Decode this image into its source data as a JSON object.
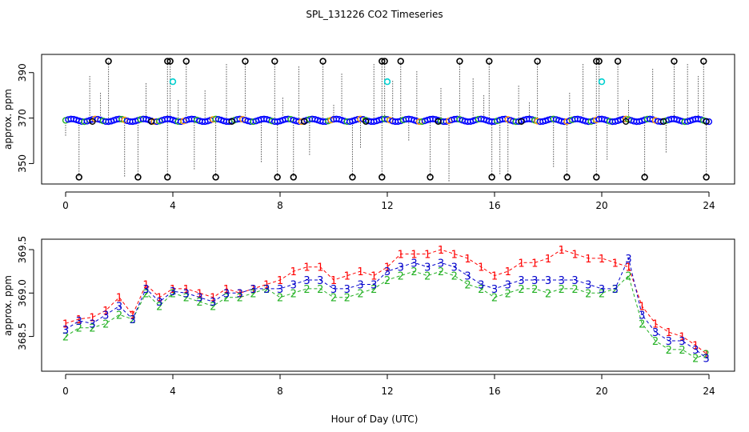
{
  "figure": {
    "title": "SPL_131226  CO2 Timeseries",
    "shared_xlabel": "Hour of Day (UTC)"
  },
  "colors": {
    "black": "#000000",
    "blue": "#0000ff",
    "cyan": "#00d0d0",
    "orange": "#ff9900",
    "red": "#ff0000",
    "green": "#22b022",
    "darkblue": "#0000cc"
  },
  "chart_data": [
    {
      "type": "scatter",
      "title": "SPL_131226  CO2 Timeseries",
      "xlabel": "",
      "ylabel": "approx. ppm",
      "xlim": [
        -0.5,
        24.5
      ],
      "ylim": [
        341,
        398
      ],
      "xticks": [
        0,
        4,
        8,
        12,
        16,
        20,
        24
      ],
      "xtick_labels": [
        "0",
        "4",
        "8",
        "12",
        "16",
        "20",
        "24"
      ],
      "yticks": [
        350,
        370,
        390
      ],
      "ytick_labels": [
        "350",
        "370",
        "390"
      ],
      "baseline": 369,
      "high_spikes_x": [
        1.6,
        3.8,
        3.9,
        4.5,
        6.7,
        7.8,
        9.6,
        11.8,
        11.9,
        12.5,
        14.7,
        15.8,
        17.6,
        19.8,
        19.9,
        20.6,
        22.7,
        23.8
      ],
      "high_value": 395,
      "low_spikes_x": [
        0.5,
        2.7,
        3.8,
        5.6,
        7.9,
        8.5,
        10.7,
        11.8,
        13.6,
        15.9,
        16.5,
        18.7,
        19.8,
        21.6,
        23.9
      ],
      "low_value": 344,
      "cyan_points": [
        [
          4.0,
          386
        ],
        [
          12.0,
          386
        ],
        [
          20.0,
          386
        ]
      ],
      "vertical_line_x": [
        0,
        0.9,
        1.3,
        2.2,
        3.0,
        4.2,
        4.8,
        5.2,
        6.0,
        7.3,
        8.1,
        8.7,
        9.1,
        10.0,
        10.3,
        11.0,
        11.5,
        12.2,
        12.8,
        13.1,
        14.0,
        14.3,
        15.2,
        15.6,
        16.2,
        16.9,
        17.3,
        18.2,
        18.8,
        19.3,
        20.2,
        21.0,
        21.9,
        22.4,
        23.2,
        23.6
      ]
    },
    {
      "type": "line",
      "title": "",
      "xlabel": "Hour of Day (UTC)",
      "ylabel": "approx. ppm",
      "xlim": [
        -0.5,
        24.5
      ],
      "ylim": [
        368.1,
        369.62
      ],
      "xticks": [
        0,
        4,
        8,
        12,
        16,
        20,
        24
      ],
      "xtick_labels": [
        "0",
        "4",
        "8",
        "12",
        "16",
        "20",
        "24"
      ],
      "yticks": [
        368.5,
        369.0,
        369.5
      ],
      "ytick_labels": [
        "368.5",
        "369.0",
        "369.5"
      ],
      "plot_symbols": [
        "1",
        "2",
        "3"
      ],
      "x": [
        0.0,
        0.5,
        1.0,
        1.5,
        2.0,
        2.5,
        3.0,
        3.5,
        4.0,
        4.5,
        5.0,
        5.5,
        6.0,
        6.5,
        7.0,
        7.5,
        8.0,
        8.5,
        9.0,
        9.5,
        10.0,
        10.5,
        11.0,
        11.5,
        12.0,
        12.5,
        13.0,
        13.5,
        14.0,
        14.5,
        15.0,
        15.5,
        16.0,
        16.5,
        17.0,
        17.5,
        18.0,
        18.5,
        19.0,
        19.5,
        20.0,
        20.5,
        21.0,
        21.5,
        22.0,
        22.5,
        23.0,
        23.5,
        23.9
      ],
      "series": [
        {
          "name": "1",
          "color": "#ff0000",
          "values": [
            368.65,
            368.7,
            368.72,
            368.8,
            368.95,
            368.75,
            369.1,
            368.95,
            369.05,
            369.05,
            369.0,
            368.95,
            369.05,
            369.0,
            369.05,
            369.1,
            369.15,
            369.25,
            369.3,
            369.3,
            369.15,
            369.2,
            369.25,
            369.2,
            369.3,
            369.45,
            369.45,
            369.45,
            369.5,
            369.45,
            369.4,
            369.3,
            369.2,
            369.25,
            369.35,
            369.35,
            369.4,
            369.5,
            369.45,
            369.4,
            369.4,
            369.35,
            369.3,
            368.85,
            368.65,
            368.55,
            368.5,
            368.4,
            368.3
          ]
        },
        {
          "name": "2",
          "color": "#22b022",
          "values": [
            368.5,
            368.6,
            368.6,
            368.65,
            368.75,
            368.7,
            369.0,
            368.85,
            369.0,
            368.95,
            368.9,
            368.85,
            368.95,
            368.95,
            369.0,
            369.05,
            368.95,
            369.0,
            369.05,
            369.05,
            368.95,
            368.95,
            369.0,
            369.05,
            369.15,
            369.2,
            369.25,
            369.2,
            369.25,
            369.2,
            369.1,
            369.05,
            368.95,
            369.0,
            369.05,
            369.05,
            369.0,
            369.05,
            369.05,
            369.0,
            369.0,
            369.05,
            369.2,
            368.65,
            368.45,
            368.35,
            368.35,
            368.25,
            368.3
          ]
        },
        {
          "name": "3",
          "color": "#0000cc",
          "values": [
            368.58,
            368.68,
            368.65,
            368.75,
            368.85,
            368.7,
            369.05,
            368.9,
            369.02,
            369.0,
            368.95,
            368.9,
            369.0,
            369.0,
            369.05,
            369.05,
            369.05,
            369.1,
            369.15,
            369.15,
            369.05,
            369.05,
            369.1,
            369.1,
            369.25,
            369.3,
            369.35,
            369.3,
            369.35,
            369.3,
            369.2,
            369.1,
            369.05,
            369.1,
            369.15,
            369.15,
            369.15,
            369.15,
            369.15,
            369.1,
            369.05,
            369.05,
            369.4,
            368.75,
            368.55,
            368.45,
            368.45,
            368.35,
            368.25
          ]
        }
      ]
    }
  ]
}
